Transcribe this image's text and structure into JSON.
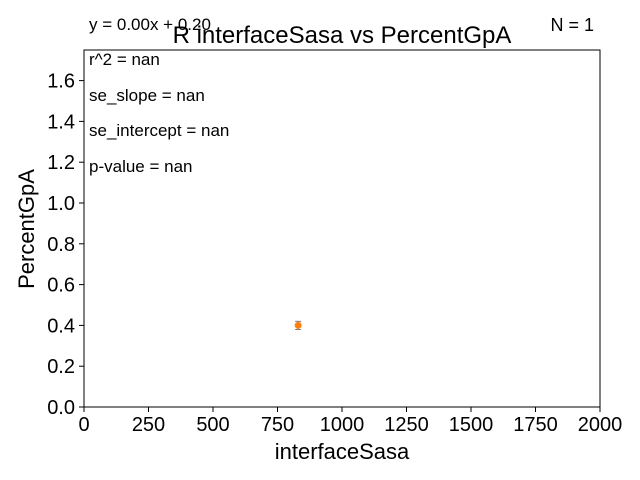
{
  "chart_data": {
    "type": "scatter",
    "title": "R interfaceSasa vs PercentGpA",
    "xlabel": "interfaceSasa",
    "ylabel": "PercentGpA",
    "xlim": [
      0,
      2000
    ],
    "ylim": [
      0,
      1.75
    ],
    "xticks": [
      0,
      250,
      500,
      750,
      1000,
      1250,
      1500,
      1750,
      2000
    ],
    "yticks": [
      0.0,
      0.2,
      0.4,
      0.6,
      0.8,
      1.0,
      1.2,
      1.4,
      1.6
    ],
    "ytick_labels": [
      "0.0",
      "0.2",
      "0.4",
      "0.6",
      "0.8",
      "1.0",
      "1.2",
      "1.4",
      "1.6"
    ],
    "grid": false,
    "points": [
      {
        "x": 830,
        "y": 0.4,
        "yerr": 0.02
      }
    ],
    "point_color": "#ff7f0e",
    "errorbar_color": "#7f7f7f",
    "annotations": {
      "equation": "y = 0.00x + 0.20",
      "n_label": "N = 1",
      "stats": [
        "r^2 = nan",
        "se_slope = nan",
        "se_intercept = nan",
        "p-value = nan"
      ]
    }
  }
}
